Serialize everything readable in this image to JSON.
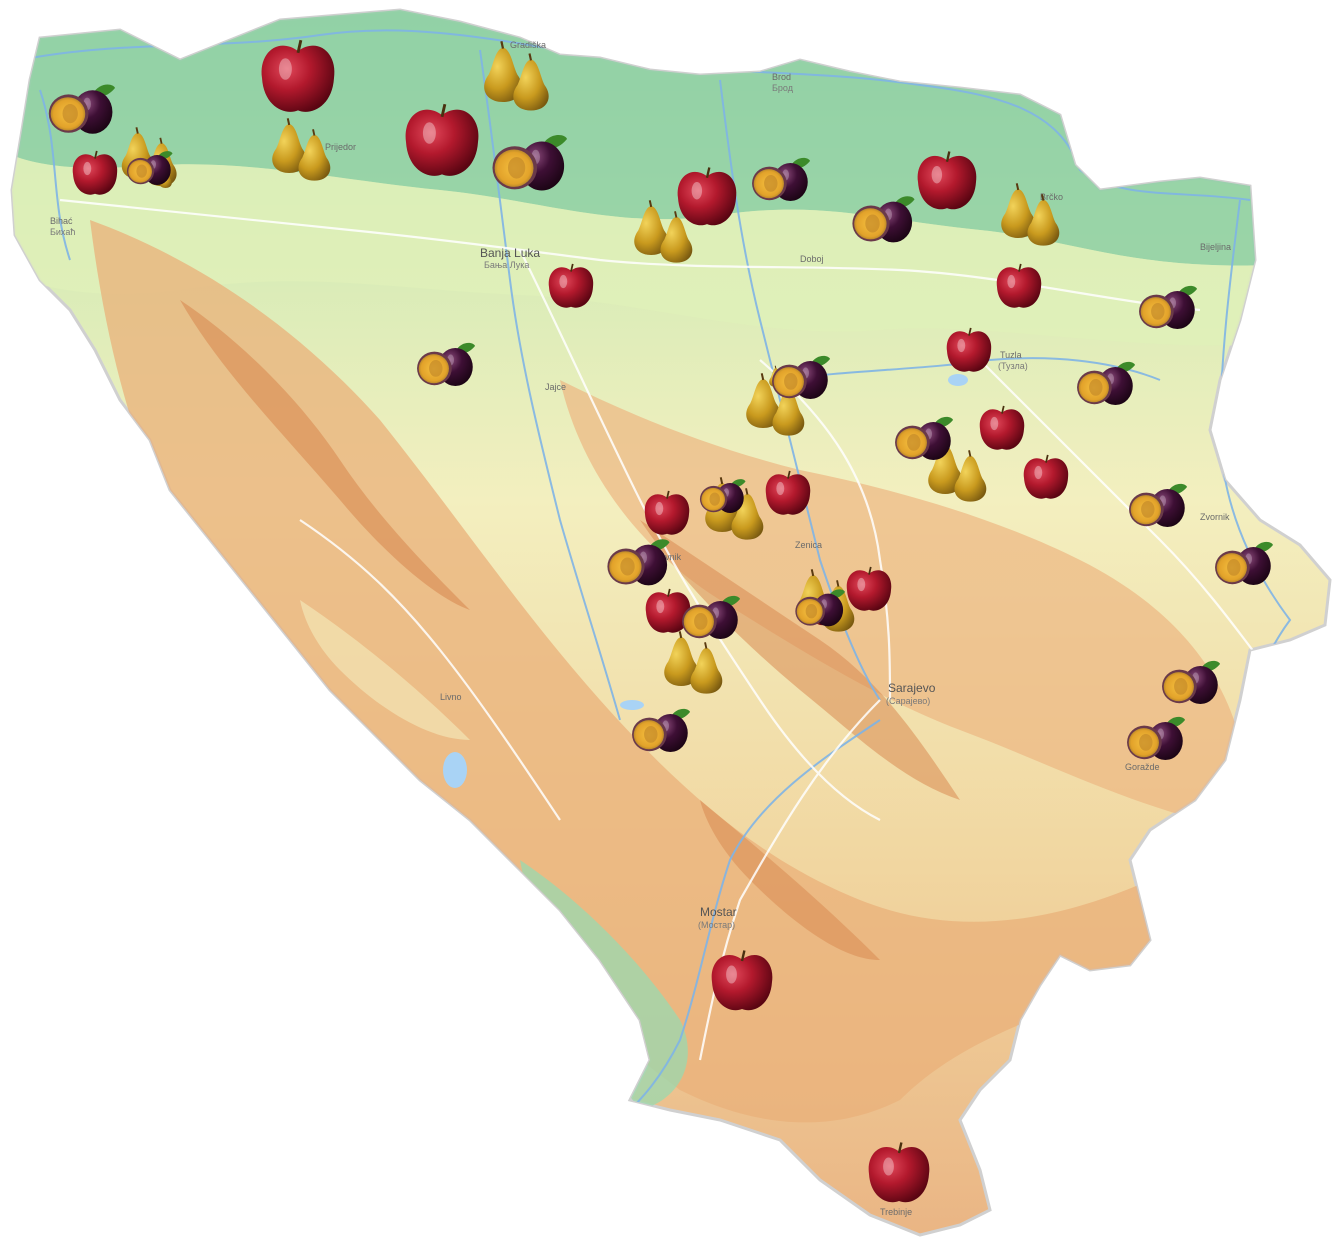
{
  "map": {
    "colors": {
      "lowland": "#8fd0a4",
      "plain": "#f6f2bd",
      "hills": "#f0d49a",
      "mountain": "#e7a46c",
      "peak": "#d9844f",
      "river": "#7fb4e6",
      "road": "#ffffff",
      "border": "#c9c9c9"
    },
    "cities": [
      {
        "key": "banja_luka",
        "name": "Banja Luka",
        "sub": "Бања Лука"
      },
      {
        "key": "sarajevo",
        "name": "Sarajevo",
        "sub": "(Сарајево)"
      },
      {
        "key": "mostar",
        "name": "Mostar",
        "sub": "(Мостар)"
      },
      {
        "key": "tuzla",
        "name": "Tuzla",
        "sub": "(Тузла)"
      },
      {
        "key": "bihac",
        "name": "Bihać",
        "sub": "Бихаћ"
      },
      {
        "key": "brod",
        "name": "Brod",
        "sub": "Брод"
      },
      {
        "key": "gradiska",
        "name": "Gradiška",
        "sub": ""
      },
      {
        "key": "prijedor",
        "name": "Prijedor",
        "sub": ""
      },
      {
        "key": "doboj",
        "name": "Doboj",
        "sub": ""
      },
      {
        "key": "bijeljina",
        "name": "Bijeljina",
        "sub": ""
      },
      {
        "key": "zenica",
        "name": "Zenica",
        "sub": ""
      },
      {
        "key": "travnik",
        "name": "Travnik",
        "sub": ""
      },
      {
        "key": "brcko",
        "name": "Brčko",
        "sub": ""
      },
      {
        "key": "zvornik",
        "name": "Zvornik",
        "sub": ""
      },
      {
        "key": "trebinje",
        "name": "Trebinje",
        "sub": ""
      },
      {
        "key": "livno",
        "name": "Livno",
        "sub": ""
      },
      {
        "key": "jajce",
        "name": "Jajce",
        "sub": ""
      },
      {
        "key": "gorazde",
        "name": "Goražde",
        "sub": ""
      }
    ],
    "fruit_markers": [
      {
        "type": "plum-icon",
        "count": 19
      },
      {
        "type": "apple-icon",
        "count": 17
      },
      {
        "type": "pear-icon",
        "count": 12
      }
    ]
  }
}
